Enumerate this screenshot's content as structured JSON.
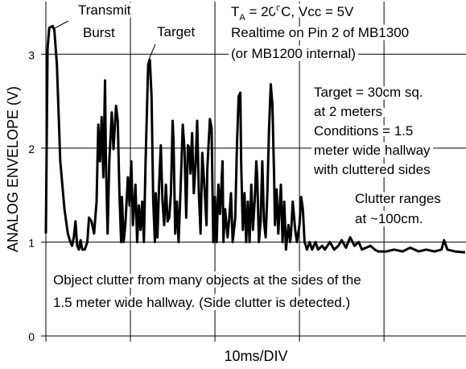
{
  "chart_data": {
    "type": "line",
    "y_label": "ANALOG ENVELOPE (V)",
    "x_label": "10ms/DIV",
    "xlim": [
      0,
      49.7
    ],
    "xticks": [
      0,
      10,
      20,
      30,
      40
    ],
    "ylim": [
      0,
      3.56
    ],
    "yticks": [
      0,
      1,
      2,
      3
    ],
    "grid": true,
    "color": "#000000",
    "x": [
      0,
      0.2,
      0.4,
      0.8,
      1.0,
      1.3,
      1.7,
      2.2,
      2.6,
      2.9,
      3.1,
      3.3,
      3.5,
      3.7,
      3.9,
      4.1,
      4.3,
      4.6,
      4.9,
      5.1,
      5.4,
      5.7,
      6.0,
      6.2,
      6.4,
      6.6,
      6.8,
      7.0,
      7.1,
      7.3,
      7.5,
      7.8,
      8.0,
      8.3,
      8.5,
      8.7,
      8.9,
      9.0,
      9.2,
      9.4,
      9.7,
      9.9,
      10.1,
      10.3,
      10.6,
      10.8,
      11.0,
      11.2,
      11.4,
      11.6,
      11.8,
      12.1,
      12.3,
      12.5,
      12.7,
      12.9,
      13.0,
      13.2,
      13.4,
      13.6,
      13.8,
      14.0,
      14.2,
      14.4,
      14.6,
      14.8,
      15.0,
      15.1,
      15.3,
      15.5,
      15.7,
      15.9,
      16.2,
      16.4,
      16.6,
      16.8,
      17.0,
      17.1,
      17.3,
      17.5,
      17.7,
      17.9,
      18.1,
      18.3,
      18.5,
      18.8,
      19.0,
      19.1,
      19.4,
      19.6,
      19.8,
      20.0,
      20.2,
      20.4,
      20.6,
      20.9,
      21.0,
      21.2,
      21.5,
      21.7,
      21.9,
      22.1,
      22.4,
      22.6,
      22.8,
      23.0,
      23.1,
      23.3,
      23.5,
      23.7,
      23.9,
      24.1,
      24.3,
      24.5,
      24.7,
      24.9,
      25.0,
      25.2,
      25.4,
      25.6,
      25.8,
      26.0,
      26.2,
      26.4,
      26.6,
      26.8,
      27.0,
      27.1,
      27.3,
      27.5,
      27.8,
      28.0,
      28.2,
      28.4,
      28.7,
      28.9,
      29.0,
      29.2,
      29.5,
      29.7,
      30.0,
      30.2,
      30.4,
      30.6,
      30.9,
      31.2,
      31.5,
      31.9,
      32.2,
      32.7,
      33.0,
      33.6,
      34.1,
      34.6,
      35.0,
      35.5,
      36.0,
      36.5,
      37.0,
      37.4,
      37.9,
      38.4,
      38.9,
      39.3,
      40.3,
      41.2,
      42.2,
      43.1,
      44.1,
      45.0,
      46.0,
      46.8,
      47.1,
      47.5,
      48.4,
      49.6
    ],
    "values": [
      1.09,
      3.06,
      3.28,
      3.3,
      3.26,
      2.89,
      1.86,
      1.35,
      1.09,
      1.0,
      0.96,
      1.05,
      1.22,
      0.96,
      0.92,
      1.02,
      0.92,
      0.92,
      1.0,
      1.26,
      1.22,
      1.09,
      1.43,
      2.25,
      1.86,
      2.33,
      1.69,
      2.72,
      1.86,
      1.09,
      1.86,
      2.38,
      1.99,
      2.45,
      2.29,
      1.52,
      1.0,
      1.48,
      1.0,
      1.18,
      1.69,
      1.39,
      1.86,
      1.18,
      1.61,
      1.0,
      1.39,
      1.13,
      1.43,
      1.0,
      1.86,
      2.89,
      2.94,
      2.55,
      1.43,
      1.0,
      1.52,
      1.05,
      1.61,
      2.03,
      1.43,
      1.18,
      1.61,
      1.22,
      1.26,
      1.52,
      2.29,
      2.08,
      1.09,
      1.43,
      1.0,
      1.48,
      2.25,
      1.99,
      1.26,
      2.03,
      1.99,
      1.73,
      2.16,
      1.52,
      1.82,
      2.29,
      1.52,
      1.09,
      1.95,
      1.52,
      1.18,
      1.78,
      2.31,
      2.21,
      1.0,
      1.48,
      1.0,
      1.61,
      1.3,
      1.86,
      1.0,
      1.35,
      1.05,
      1.26,
      1.52,
      1.0,
      1.26,
      2.03,
      2.55,
      2.59,
      1.86,
      1.13,
      1.52,
      1.0,
      1.43,
      1.0,
      1.61,
      1.13,
      1.43,
      1.86,
      1.69,
      1.0,
      1.22,
      1.86,
      1.22,
      1.05,
      1.52,
      2.21,
      2.68,
      2.46,
      1.69,
      1.18,
      1.56,
      1.09,
      1.61,
      1.0,
      1.43,
      0.92,
      1.18,
      1.0,
      1.09,
      1.43,
      1.13,
      1.0,
      1.18,
      1.48,
      1.35,
      1.0,
      0.92,
      1.0,
      0.92,
      1.0,
      0.92,
      0.96,
      0.92,
      1.0,
      0.92,
      0.96,
      1.02,
      0.94,
      1.05,
      0.96,
      1.0,
      0.92,
      0.94,
      0.96,
      0.92,
      0.9,
      0.9,
      0.92,
      0.9,
      0.94,
      0.9,
      0.92,
      0.9,
      0.92,
      1.02,
      0.92,
      0.9,
      0.89
    ],
    "annotations": [
      {
        "lines": [
          "Transmit",
          "Burst"
        ]
      },
      {
        "lines": [
          "Target"
        ]
      },
      {
        "lines": [
          [
            "T",
            "A",
            " = 20",
            "o",
            "C, Vcc = 5V"
          ],
          "Realtime on Pin 2 of MB1300",
          "(or MB1200 internal)"
        ]
      },
      {
        "lines": [
          "Target = 30cm sq.",
          "at 2 meters",
          "Conditions = 1.5",
          "meter wide hallway",
          "with cluttered sides"
        ]
      },
      {
        "lines": [
          "Clutter ranges",
          "at ~100cm."
        ]
      },
      {
        "lines": [
          "Object clutter from many objects at the sides of the",
          "1.5 meter wide hallway.  (Side clutter is detected.)"
        ]
      }
    ]
  }
}
